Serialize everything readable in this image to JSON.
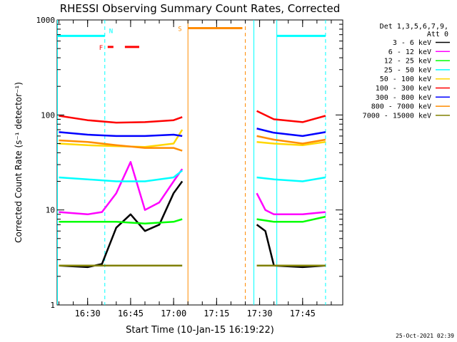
{
  "chart_data": {
    "type": "line",
    "title": "RHESSI Observing Summary Count Rates, Corrected",
    "xlabel": "Start Time (10-Jan-15 16:19:22)",
    "ylabel": "Corrected Count Rate (s⁻¹ detector⁻¹)",
    "yscale": "log",
    "ylim": [
      1,
      1000
    ],
    "xlim": [
      "16:19:22",
      "17:59:00"
    ],
    "y_ticks": [
      "1",
      "10",
      "100",
      "1000"
    ],
    "x_ticks": [
      "16:30",
      "16:45",
      "17:00",
      "17:15",
      "17:30",
      "17:45"
    ],
    "grid": false,
    "legend": {
      "header": [
        "Det 1,3,5,6,7,9,",
        "Att 0"
      ],
      "position": "right"
    },
    "gap": [
      "17:04",
      "17:28"
    ],
    "series": [
      {
        "name": "3 - 6 keV",
        "color": "#000000",
        "x": [
          "16:20",
          "16:30",
          "16:35",
          "16:40",
          "16:45",
          "16:50",
          "16:55",
          "17:00",
          "17:03",
          "17:29",
          "17:32",
          "17:35",
          "17:45",
          "17:53"
        ],
        "y": [
          2.6,
          2.5,
          2.7,
          6.5,
          9,
          6,
          7,
          15,
          20,
          7,
          6,
          2.6,
          2.5,
          2.6
        ]
      },
      {
        "name": "6 - 12 keV",
        "color": "#ff00ff",
        "x": [
          "16:20",
          "16:30",
          "16:35",
          "16:40",
          "16:45",
          "16:50",
          "16:55",
          "17:00",
          "17:03",
          "17:29",
          "17:32",
          "17:35",
          "17:45",
          "17:53"
        ],
        "y": [
          9.5,
          9,
          9.5,
          15,
          32,
          10,
          12,
          20,
          27,
          15,
          10,
          9,
          9,
          9.5
        ]
      },
      {
        "name": "12 - 25 keV",
        "color": "#00ff00",
        "x": [
          "16:20",
          "16:30",
          "16:40",
          "16:50",
          "17:00",
          "17:03",
          "17:29",
          "17:35",
          "17:45",
          "17:53"
        ],
        "y": [
          7.5,
          7.5,
          7.5,
          7.2,
          7.5,
          8,
          8,
          7.5,
          7.5,
          8.5
        ]
      },
      {
        "name": "25 - 50 keV",
        "color": "#00ffff",
        "x": [
          "16:20",
          "16:30",
          "16:40",
          "16:50",
          "17:00",
          "17:03",
          "17:29",
          "17:35",
          "17:45",
          "17:53"
        ],
        "y": [
          22,
          21,
          20,
          20,
          22,
          26,
          22,
          21,
          20,
          22
        ]
      },
      {
        "name": "50 - 100 keV",
        "color": "#ffd700",
        "x": [
          "16:20",
          "16:30",
          "16:40",
          "16:50",
          "17:00",
          "17:03",
          "17:29",
          "17:35",
          "17:45",
          "17:53"
        ],
        "y": [
          50,
          48,
          47,
          46,
          50,
          70,
          52,
          50,
          48,
          52
        ]
      },
      {
        "name": "100 - 300 keV",
        "color": "#ff0000",
        "x": [
          "16:20",
          "16:30",
          "16:40",
          "16:50",
          "17:00",
          "17:03",
          "17:29",
          "17:35",
          "17:45",
          "17:53"
        ],
        "y": [
          98,
          88,
          83,
          84,
          88,
          95,
          110,
          90,
          84,
          98
        ]
      },
      {
        "name": "300 - 800 keV",
        "color": "#0000ff",
        "x": [
          "16:20",
          "16:30",
          "16:40",
          "16:50",
          "17:00",
          "17:03",
          "17:29",
          "17:35",
          "17:45",
          "17:53"
        ],
        "y": [
          66,
          62,
          60,
          60,
          62,
          60,
          72,
          65,
          60,
          66
        ]
      },
      {
        "name": "800 - 7000 keV",
        "color": "#ff8c00",
        "x": [
          "16:20",
          "16:30",
          "16:40",
          "16:50",
          "17:00",
          "17:03",
          "17:29",
          "17:35",
          "17:45",
          "17:53"
        ],
        "y": [
          54,
          52,
          48,
          45,
          45,
          42,
          60,
          55,
          50,
          55
        ]
      },
      {
        "name": "7000 - 15000 keV",
        "color": "#808000",
        "x": [
          "16:20",
          "16:30",
          "16:40",
          "16:50",
          "17:00",
          "17:03",
          "17:29",
          "17:35",
          "17:45",
          "17:53"
        ],
        "y": [
          2.6,
          2.6,
          2.6,
          2.6,
          2.6,
          2.6,
          2.6,
          2.6,
          2.6,
          2.6
        ]
      }
    ],
    "flag_bars": [
      {
        "label": "N",
        "color": "#00ffff",
        "level": 680,
        "segments": [
          [
            "16:19:22",
            "16:36"
          ],
          [
            "17:36",
            "17:53"
          ]
        ]
      },
      {
        "label": "F",
        "color": "#ff0000",
        "level": 520,
        "segments": [
          [
            "16:37",
            "16:39"
          ],
          [
            "16:43",
            "16:48"
          ]
        ]
      },
      {
        "label": "S",
        "color": "#ff8c00",
        "level": 820,
        "segments": [
          [
            "17:05",
            "17:24"
          ]
        ]
      }
    ],
    "vertical_markers": [
      {
        "time": "16:19:30",
        "color": "#00ffff",
        "style": "solid"
      },
      {
        "time": "16:36",
        "color": "#00ffff",
        "style": "dashed"
      },
      {
        "time": "17:05",
        "color": "#ff8c00",
        "style": "solid"
      },
      {
        "time": "17:25",
        "color": "#ff8c00",
        "style": "dashed"
      },
      {
        "time": "17:28",
        "color": "#00ffff",
        "style": "solid"
      },
      {
        "time": "17:36",
        "color": "#00ffff",
        "style": "solid"
      },
      {
        "time": "17:53",
        "color": "#00ffff",
        "style": "dashed"
      }
    ],
    "footer": "25-Oct-2021 02:39"
  }
}
